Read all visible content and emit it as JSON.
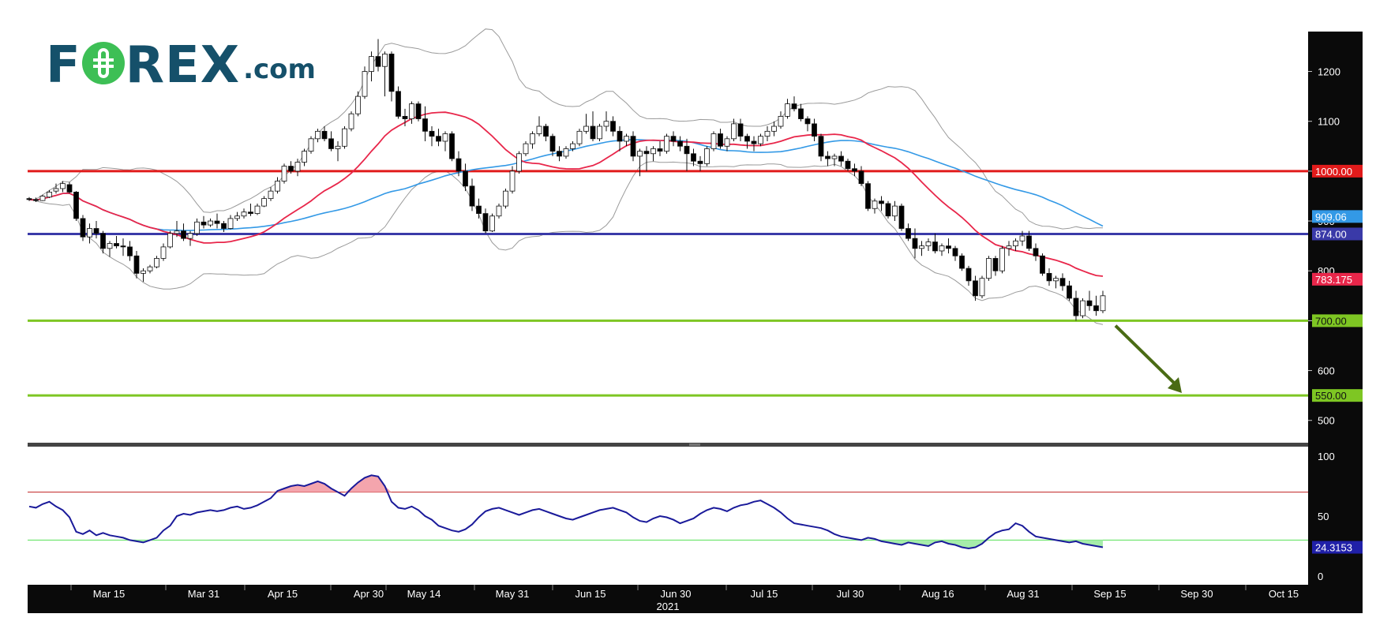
{
  "logo": {
    "left": "F",
    "right": "REX",
    "domain": ".com"
  },
  "chart_data": {
    "type": "candlestick",
    "year_label": "2021",
    "x_ticks": [
      "Mar 15",
      "Mar 31",
      "Apr 15",
      "Apr 30",
      "May 14",
      "May 31",
      "Jun 15",
      "Jun 30",
      "Jul 15",
      "Jul 30",
      "Aug 16",
      "Aug 31",
      "Sep 15",
      "Sep 30",
      "Oct 15"
    ],
    "price_axis": {
      "ylim": [
        460,
        1280
      ],
      "ticks": [
        500,
        600,
        700,
        800,
        900,
        1000,
        1100,
        1200
      ]
    },
    "horizontal_levels": [
      {
        "value": 1000,
        "label": "1000.00",
        "color": "#e11b1b"
      },
      {
        "value": 874,
        "label": "874.00",
        "color": "#3a3aa8"
      },
      {
        "value": 700,
        "label": "700.00",
        "color": "#7ec623"
      },
      {
        "value": 550,
        "label": "550.00",
        "color": "#7ec623"
      }
    ],
    "indicator_labels": [
      {
        "value": 909.06,
        "label": "909.06",
        "color": "#3399e6"
      },
      {
        "value": 783.175,
        "label": "783.175",
        "color": "#e8264a"
      }
    ],
    "arrow": {
      "from": {
        "x": 166,
        "y": 695
      },
      "to": {
        "x": 212,
        "y": 552
      },
      "color": "#4a6b14"
    },
    "candles": [
      [
        0,
        945,
        948,
        940,
        943
      ],
      [
        1,
        943,
        947,
        938,
        941
      ],
      [
        2,
        941,
        953,
        940,
        950
      ],
      [
        3,
        948,
        962,
        946,
        958
      ],
      [
        4,
        960,
        975,
        955,
        965
      ],
      [
        5,
        965,
        980,
        958,
        975
      ],
      [
        6,
        973,
        978,
        955,
        958
      ],
      [
        7,
        958,
        960,
        900,
        905
      ],
      [
        8,
        905,
        912,
        860,
        868
      ],
      [
        9,
        868,
        895,
        855,
        885
      ],
      [
        10,
        885,
        900,
        865,
        875
      ],
      [
        11,
        875,
        880,
        835,
        845
      ],
      [
        12,
        845,
        860,
        828,
        855
      ],
      [
        13,
        855,
        870,
        845,
        850
      ],
      [
        14,
        850,
        865,
        830,
        848
      ],
      [
        15,
        848,
        860,
        820,
        830
      ],
      [
        16,
        830,
        840,
        785,
        795
      ],
      [
        17,
        795,
        805,
        778,
        800
      ],
      [
        18,
        800,
        812,
        795,
        808
      ],
      [
        19,
        808,
        830,
        805,
        825
      ],
      [
        20,
        825,
        855,
        820,
        848
      ],
      [
        21,
        848,
        880,
        845,
        875
      ],
      [
        22,
        875,
        900,
        868,
        880
      ],
      [
        23,
        880,
        895,
        860,
        865
      ],
      [
        24,
        865,
        880,
        850,
        875
      ],
      [
        25,
        875,
        905,
        870,
        898
      ],
      [
        26,
        898,
        910,
        885,
        892
      ],
      [
        27,
        892,
        905,
        888,
        900
      ],
      [
        28,
        900,
        915,
        885,
        895
      ],
      [
        29,
        895,
        900,
        878,
        885
      ],
      [
        30,
        885,
        912,
        883,
        905
      ],
      [
        31,
        905,
        918,
        900,
        910
      ],
      [
        32,
        910,
        925,
        905,
        918
      ],
      [
        33,
        918,
        935,
        910,
        915
      ],
      [
        34,
        915,
        935,
        912,
        930
      ],
      [
        35,
        930,
        950,
        928,
        945
      ],
      [
        36,
        945,
        968,
        940,
        960
      ],
      [
        37,
        960,
        988,
        955,
        980
      ],
      [
        38,
        980,
        1015,
        975,
        1010
      ],
      [
        39,
        1010,
        1020,
        995,
        1000
      ],
      [
        40,
        1000,
        1025,
        990,
        1018
      ],
      [
        41,
        1018,
        1045,
        1010,
        1040
      ],
      [
        42,
        1040,
        1070,
        1035,
        1065
      ],
      [
        43,
        1065,
        1085,
        1058,
        1080
      ],
      [
        44,
        1080,
        1090,
        1060,
        1065
      ],
      [
        45,
        1065,
        1080,
        1040,
        1045
      ],
      [
        46,
        1045,
        1060,
        1020,
        1050
      ],
      [
        47,
        1050,
        1090,
        1045,
        1085
      ],
      [
        48,
        1085,
        1120,
        1080,
        1115
      ],
      [
        49,
        1115,
        1160,
        1110,
        1150
      ],
      [
        50,
        1150,
        1210,
        1145,
        1200
      ],
      [
        51,
        1200,
        1240,
        1180,
        1230
      ],
      [
        52,
        1230,
        1265,
        1200,
        1210
      ],
      [
        53,
        1210,
        1240,
        1150,
        1235
      ],
      [
        54,
        1235,
        1240,
        1140,
        1160
      ],
      [
        55,
        1160,
        1170,
        1105,
        1110
      ],
      [
        56,
        1110,
        1125,
        1090,
        1105
      ],
      [
        57,
        1105,
        1140,
        1095,
        1135
      ],
      [
        58,
        1135,
        1140,
        1100,
        1105
      ],
      [
        59,
        1105,
        1130,
        1060,
        1080
      ],
      [
        60,
        1080,
        1090,
        1050,
        1070
      ],
      [
        61,
        1070,
        1085,
        1050,
        1060
      ],
      [
        62,
        1060,
        1080,
        1040,
        1075
      ],
      [
        63,
        1075,
        1080,
        1020,
        1025
      ],
      [
        64,
        1025,
        1040,
        990,
        1000
      ],
      [
        65,
        1000,
        1015,
        960,
        970
      ],
      [
        66,
        970,
        985,
        920,
        930
      ],
      [
        67,
        930,
        945,
        905,
        915
      ],
      [
        68,
        915,
        925,
        875,
        880
      ],
      [
        69,
        880,
        915,
        878,
        910
      ],
      [
        70,
        910,
        935,
        905,
        930
      ],
      [
        71,
        930,
        965,
        925,
        960
      ],
      [
        72,
        960,
        1010,
        955,
        1000
      ],
      [
        73,
        1000,
        1040,
        995,
        1035
      ],
      [
        74,
        1035,
        1060,
        1030,
        1055
      ],
      [
        75,
        1055,
        1080,
        1045,
        1075
      ],
      [
        76,
        1075,
        1110,
        1070,
        1090
      ],
      [
        77,
        1090,
        1095,
        1060,
        1070
      ],
      [
        78,
        1070,
        1075,
        1030,
        1040
      ],
      [
        79,
        1040,
        1050,
        1020,
        1030
      ],
      [
        80,
        1030,
        1050,
        1025,
        1045
      ],
      [
        81,
        1045,
        1060,
        1040,
        1055
      ],
      [
        82,
        1055,
        1085,
        1050,
        1080
      ],
      [
        83,
        1080,
        1115,
        1075,
        1090
      ],
      [
        84,
        1090,
        1120,
        1060,
        1065
      ],
      [
        85,
        1065,
        1095,
        1060,
        1090
      ],
      [
        86,
        1090,
        1120,
        1080,
        1100
      ],
      [
        87,
        1100,
        1110,
        1070,
        1080
      ],
      [
        88,
        1080,
        1090,
        1040,
        1060
      ],
      [
        89,
        1060,
        1075,
        1050,
        1070
      ],
      [
        90,
        1070,
        1080,
        1020,
        1030
      ],
      [
        91,
        1030,
        1045,
        990,
        1040
      ],
      [
        92,
        1040,
        1050,
        1000,
        1035
      ],
      [
        93,
        1035,
        1050,
        1020,
        1045
      ],
      [
        94,
        1045,
        1060,
        1030,
        1040
      ],
      [
        95,
        1040,
        1075,
        1035,
        1070
      ],
      [
        96,
        1070,
        1080,
        1050,
        1060
      ],
      [
        97,
        1060,
        1070,
        1040,
        1050
      ],
      [
        98,
        1050,
        1065,
        1000,
        1035
      ],
      [
        99,
        1035,
        1045,
        1010,
        1020
      ],
      [
        100,
        1020,
        1030,
        1000,
        1015
      ],
      [
        101,
        1015,
        1050,
        1010,
        1045
      ],
      [
        102,
        1045,
        1080,
        1040,
        1075
      ],
      [
        103,
        1075,
        1085,
        1045,
        1050
      ],
      [
        104,
        1050,
        1070,
        1040,
        1065
      ],
      [
        105,
        1065,
        1105,
        1060,
        1095
      ],
      [
        106,
        1095,
        1105,
        1060,
        1070
      ],
      [
        107,
        1070,
        1075,
        1045,
        1060
      ],
      [
        108,
        1060,
        1070,
        1040,
        1055
      ],
      [
        109,
        1055,
        1075,
        1050,
        1070
      ],
      [
        110,
        1070,
        1090,
        1060,
        1080
      ],
      [
        111,
        1080,
        1100,
        1070,
        1090
      ],
      [
        112,
        1090,
        1120,
        1085,
        1110
      ],
      [
        113,
        1110,
        1145,
        1105,
        1135
      ],
      [
        114,
        1135,
        1150,
        1120,
        1125
      ],
      [
        115,
        1125,
        1135,
        1100,
        1105
      ],
      [
        116,
        1105,
        1110,
        1080,
        1095
      ],
      [
        117,
        1095,
        1105,
        1060,
        1070
      ],
      [
        118,
        1070,
        1075,
        1020,
        1030
      ],
      [
        119,
        1030,
        1040,
        1010,
        1025
      ],
      [
        120,
        1025,
        1035,
        1010,
        1030
      ],
      [
        121,
        1030,
        1040,
        1010,
        1020
      ],
      [
        122,
        1020,
        1025,
        1000,
        1005
      ],
      [
        123,
        1005,
        1015,
        990,
        1000
      ],
      [
        124,
        1000,
        1010,
        970,
        975
      ],
      [
        125,
        975,
        980,
        920,
        925
      ],
      [
        126,
        925,
        945,
        915,
        940
      ],
      [
        127,
        940,
        950,
        920,
        935
      ],
      [
        128,
        935,
        940,
        905,
        910
      ],
      [
        129,
        910,
        940,
        900,
        930
      ],
      [
        130,
        930,
        935,
        880,
        885
      ],
      [
        131,
        885,
        895,
        860,
        865
      ],
      [
        132,
        865,
        885,
        825,
        845
      ],
      [
        133,
        845,
        860,
        830,
        850
      ],
      [
        134,
        850,
        865,
        840,
        858
      ],
      [
        135,
        858,
        875,
        835,
        840
      ],
      [
        136,
        840,
        855,
        830,
        850
      ],
      [
        137,
        850,
        865,
        835,
        845
      ],
      [
        138,
        845,
        850,
        820,
        830
      ],
      [
        139,
        830,
        835,
        800,
        805
      ],
      [
        140,
        805,
        810,
        770,
        780
      ],
      [
        141,
        780,
        790,
        740,
        750
      ],
      [
        142,
        750,
        790,
        745,
        785
      ],
      [
        143,
        785,
        830,
        780,
        825
      ],
      [
        144,
        825,
        830,
        790,
        800
      ],
      [
        145,
        800,
        850,
        795,
        845
      ],
      [
        146,
        845,
        860,
        830,
        850
      ],
      [
        147,
        850,
        865,
        840,
        860
      ],
      [
        148,
        860,
        880,
        850,
        870
      ],
      [
        149,
        870,
        880,
        840,
        845
      ],
      [
        150,
        845,
        855,
        820,
        830
      ],
      [
        151,
        830,
        835,
        790,
        795
      ],
      [
        152,
        795,
        805,
        770,
        780
      ],
      [
        153,
        780,
        790,
        765,
        785
      ],
      [
        154,
        785,
        795,
        760,
        770
      ],
      [
        155,
        770,
        780,
        740,
        745
      ],
      [
        156,
        745,
        760,
        700,
        710
      ],
      [
        157,
        710,
        745,
        705,
        740
      ],
      [
        158,
        740,
        760,
        720,
        730
      ],
      [
        159,
        730,
        750,
        710,
        720
      ],
      [
        160,
        720,
        760,
        715,
        750
      ]
    ],
    "rsi": {
      "ylim": [
        0,
        100
      ],
      "ticks": [
        0,
        50,
        100
      ],
      "overbought": 70,
      "oversold": 30,
      "last_label": "24.3153",
      "values": [
        58,
        57,
        60,
        62,
        58,
        55,
        49,
        37,
        35,
        38,
        34,
        36,
        34,
        33,
        32,
        30,
        29,
        28,
        30,
        32,
        38,
        42,
        50,
        52,
        51,
        53,
        54,
        55,
        54,
        55,
        57,
        58,
        56,
        57,
        59,
        62,
        65,
        71,
        73,
        75,
        76,
        75,
        77,
        79,
        77,
        73,
        70,
        67,
        73,
        78,
        82,
        84,
        83,
        75,
        62,
        57,
        56,
        58,
        55,
        50,
        47,
        42,
        40,
        38,
        37,
        39,
        43,
        49,
        54,
        56,
        57,
        55,
        53,
        51,
        53,
        55,
        56,
        54,
        52,
        50,
        48,
        47,
        49,
        51,
        53,
        55,
        56,
        57,
        55,
        53,
        49,
        46,
        45,
        48,
        50,
        49,
        47,
        44,
        46,
        48,
        52,
        55,
        57,
        56,
        54,
        57,
        59,
        60,
        62,
        63,
        60,
        57,
        53,
        48,
        44,
        43,
        42,
        41,
        40,
        38,
        35,
        33,
        32,
        31,
        30,
        32,
        31,
        29,
        28,
        27,
        26,
        28,
        27,
        26,
        25,
        28,
        29,
        27,
        26,
        24,
        23,
        24,
        27,
        32,
        36,
        38,
        39,
        44,
        42,
        37,
        33,
        32,
        31,
        30,
        29,
        28,
        29,
        27,
        26,
        25,
        24
      ]
    }
  }
}
